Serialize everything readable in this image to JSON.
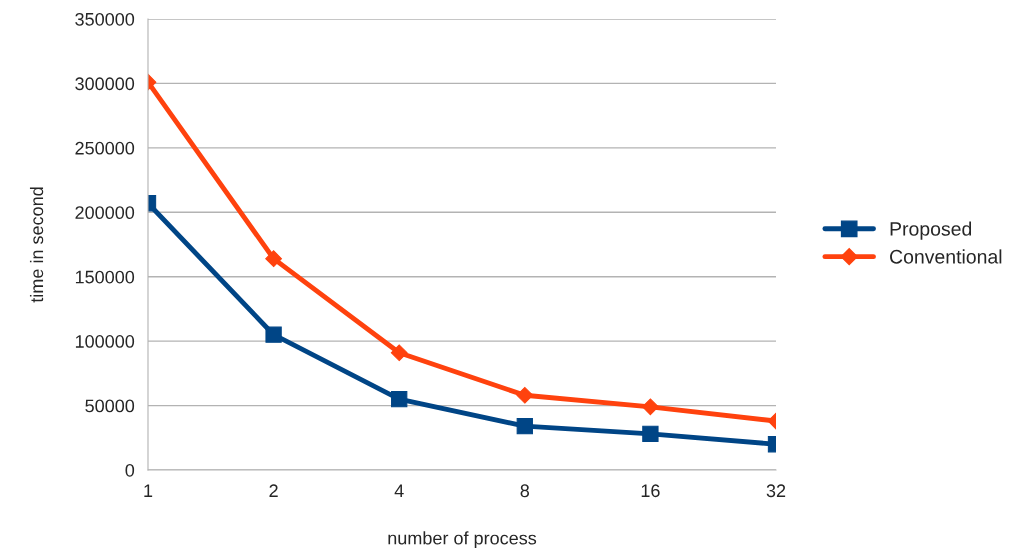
{
  "chart_data": {
    "type": "line",
    "xlabel": "number of process",
    "ylabel": "time in second",
    "categories": [
      "1",
      "2",
      "4",
      "8",
      "16",
      "32"
    ],
    "series": [
      {
        "name": "Proposed",
        "color": "#004586",
        "marker": "square",
        "values": [
          207000,
          105000,
          55000,
          34000,
          28000,
          20000
        ]
      },
      {
        "name": "Conventional",
        "color": "#ff420e",
        "marker": "diamond",
        "values": [
          301000,
          164000,
          91000,
          58000,
          49000,
          38000
        ]
      }
    ],
    "ylim": [
      0,
      350000
    ],
    "yticks": [
      0,
      50000,
      100000,
      150000,
      200000,
      250000,
      300000,
      350000
    ],
    "grid": "y",
    "legend": "right"
  }
}
